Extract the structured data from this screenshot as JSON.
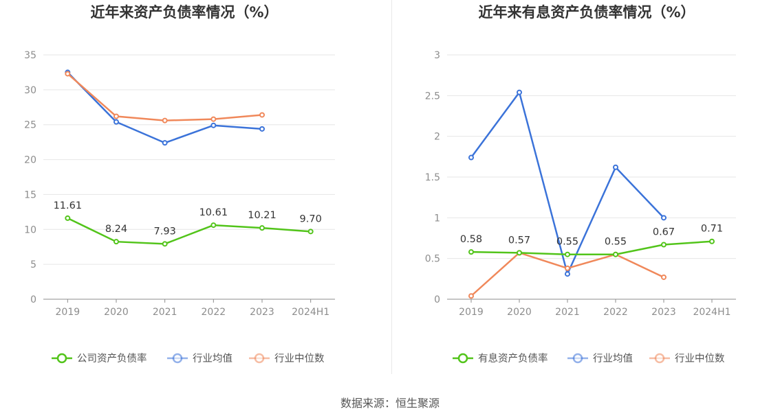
{
  "source": "数据来源：恒生聚源",
  "colors": {
    "green": "#52c41a",
    "blue": "#3b73d9",
    "orange": "#f0885a",
    "grid": "#e6e6e6",
    "axis": "#8c8c8c"
  },
  "chart_data": [
    {
      "type": "line",
      "title": "近年来资产负债率情况（%）",
      "x": [
        "2019",
        "2020",
        "2021",
        "2022",
        "2023",
        "2024H1"
      ],
      "ylim": [
        0,
        35
      ],
      "yticks": [
        "0",
        "5",
        "10",
        "15",
        "20",
        "25",
        "30",
        "35"
      ],
      "grid": true,
      "legend_position": "bottom",
      "series": [
        {
          "name": "公司资产负债率",
          "color": "#52c41a",
          "values": [
            11.61,
            8.24,
            7.93,
            10.61,
            10.21,
            9.7
          ],
          "labels": [
            "11.61",
            "8.24",
            "7.93",
            "10.61",
            "10.21",
            "9.70"
          ]
        },
        {
          "name": "行业均值",
          "color": "#3b73d9",
          "values": [
            32.5,
            25.4,
            22.4,
            24.9,
            24.4,
            null
          ]
        },
        {
          "name": "行业中位数",
          "color": "#f0885a",
          "values": [
            32.3,
            26.2,
            25.6,
            25.8,
            26.4,
            null
          ]
        }
      ]
    },
    {
      "type": "line",
      "title": "近年来有息资产负债率情况（%）",
      "x": [
        "2019",
        "2020",
        "2021",
        "2022",
        "2023",
        "2024H1"
      ],
      "ylim": [
        0,
        3
      ],
      "yticks": [
        "0",
        "0.5",
        "1",
        "1.5",
        "2",
        "2.5",
        "3"
      ],
      "grid": true,
      "legend_position": "bottom",
      "series": [
        {
          "name": "有息资产负债率",
          "color": "#52c41a",
          "values": [
            0.58,
            0.57,
            0.55,
            0.55,
            0.67,
            0.71
          ],
          "labels": [
            "0.58",
            "0.57",
            "0.55",
            "0.55",
            "0.67",
            "0.71"
          ]
        },
        {
          "name": "行业均值",
          "color": "#3b73d9",
          "values": [
            1.74,
            2.54,
            0.31,
            1.62,
            1.0,
            null
          ]
        },
        {
          "name": "行业中位数",
          "color": "#f0885a",
          "values": [
            0.04,
            0.57,
            0.38,
            0.55,
            0.27,
            null
          ]
        }
      ]
    }
  ]
}
